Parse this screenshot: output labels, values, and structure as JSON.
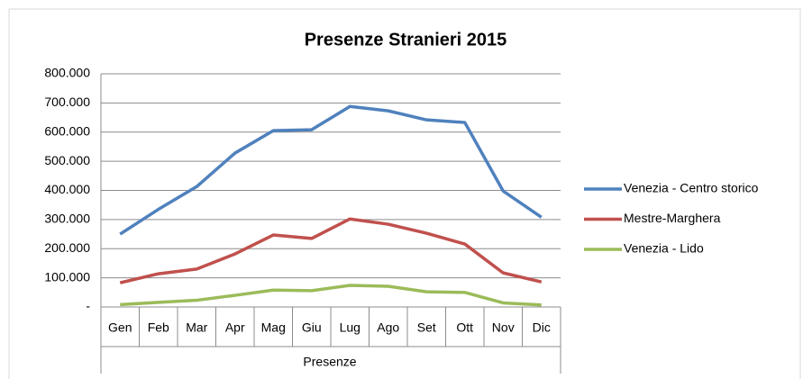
{
  "chart_data": {
    "type": "line",
    "title": "Presenze Stranieri 2015",
    "x_label": "Presenze",
    "categories": [
      "Gen",
      "Feb",
      "Mar",
      "Apr",
      "Mag",
      "Giu",
      "Lug",
      "Ago",
      "Set",
      "Ott",
      "Nov",
      "Dic"
    ],
    "series": [
      {
        "name": "Venezia - Centro storico",
        "color": "#4f81bd",
        "values": [
          250000,
          335000,
          413000,
          528000,
          605000,
          608000,
          688000,
          673000,
          642000,
          633000,
          398000,
          308000
        ]
      },
      {
        "name": "Mestre-Marghera",
        "color": "#c0504d",
        "values": [
          83000,
          114000,
          130000,
          182000,
          247000,
          235000,
          302000,
          284000,
          253000,
          216000,
          117000,
          86000
        ]
      },
      {
        "name": "Venezia - Lido",
        "color": "#9bbb59",
        "values": [
          8000,
          16000,
          23000,
          40000,
          58000,
          56000,
          74000,
          71000,
          52000,
          50000,
          14000,
          7000
        ]
      }
    ],
    "ylim": [
      0,
      800000
    ],
    "yticks": [
      {
        "value": 0,
        "label": "-"
      },
      {
        "value": 100000,
        "label": "100.000"
      },
      {
        "value": 200000,
        "label": "200.000"
      },
      {
        "value": 300000,
        "label": "300.000"
      },
      {
        "value": 400000,
        "label": "400.000"
      },
      {
        "value": 500000,
        "label": "500.000"
      },
      {
        "value": 600000,
        "label": "600.000"
      },
      {
        "value": 700000,
        "label": "700.000"
      },
      {
        "value": 800000,
        "label": "800.000"
      }
    ],
    "grid": true,
    "legend": "right"
  }
}
